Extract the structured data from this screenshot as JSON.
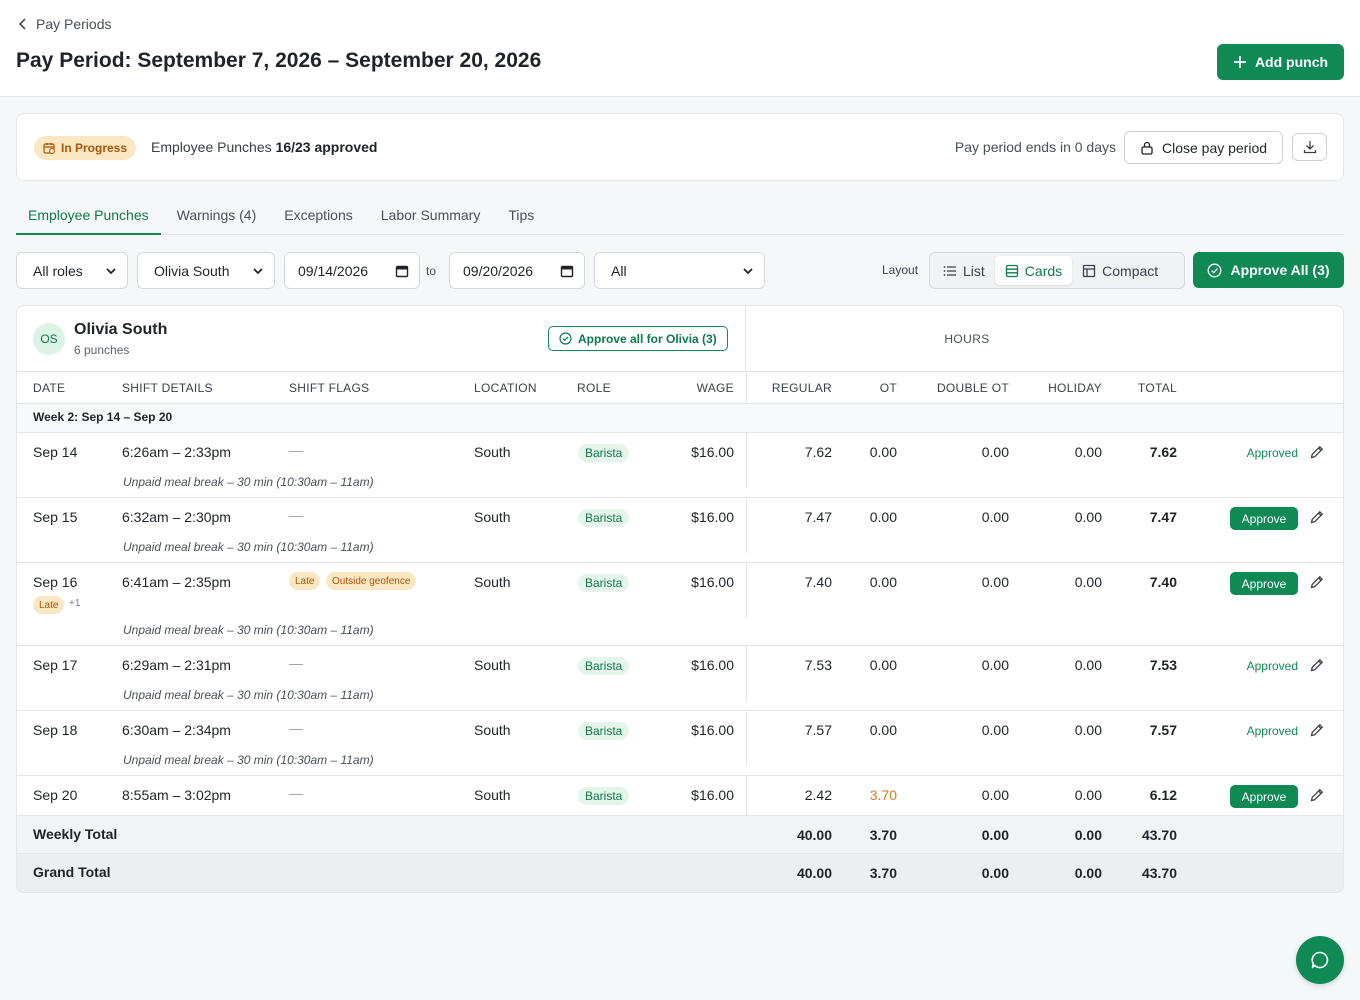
{
  "header": {
    "back_label": "Pay Periods",
    "title": "Pay Period: September 7, 2026 – September 20, 2026",
    "add_punch_label": "Add punch"
  },
  "status": {
    "badge": "In Progress",
    "punches_label": "Employee Punches",
    "punches_count": "16/23 approved",
    "ends_text": "Pay period ends in 0 days",
    "close_label": "Close pay period"
  },
  "tabs": [
    "Employee Punches",
    "Warnings (4)",
    "Exceptions",
    "Labor Summary",
    "Tips"
  ],
  "filters": {
    "role": "All roles",
    "employee": "Olivia South",
    "date_from": "09/14/2026",
    "to_label": "to",
    "date_to": "09/20/2026",
    "status": "All"
  },
  "layout": {
    "label": "Layout",
    "options": [
      "List",
      "Cards",
      "Compact"
    ],
    "active": "Cards"
  },
  "approve_all_label": "Approve All (3)",
  "employee": {
    "initials": "OS",
    "name": "Olivia South",
    "punches": "6 punches",
    "approve_label": "Approve all for Olivia (3)",
    "hours_label": "HOURS"
  },
  "columns": {
    "date": "DATE",
    "shift": "SHIFT DETAILS",
    "flags": "SHIFT FLAGS",
    "location": "LOCATION",
    "role": "ROLE",
    "wage": "WAGE",
    "regular": "REGULAR",
    "ot": "OT",
    "double_ot": "DOUBLE OT",
    "holiday": "HOLIDAY",
    "total": "TOTAL"
  },
  "week_label": "Week 2: Sep 14 – Sep 20",
  "rows": [
    {
      "date": "Sep 14",
      "shift": "6:26am – 2:33pm",
      "flags": "—",
      "location": "South",
      "role": "Barista",
      "wage": "$16.00",
      "regular": "7.62",
      "ot": "0.00",
      "double_ot": "0.00",
      "holiday": "0.00",
      "total": "7.62",
      "status": "Approved",
      "meal": "Unpaid meal break – 30 min (10:30am – 11am)"
    },
    {
      "date": "Sep 15",
      "shift": "6:32am – 2:30pm",
      "flags": "—",
      "location": "South",
      "role": "Barista",
      "wage": "$16.00",
      "regular": "7.47",
      "ot": "0.00",
      "double_ot": "0.00",
      "holiday": "0.00",
      "total": "7.47",
      "status": "Approve",
      "meal": "Unpaid meal break – 30 min (10:30am – 11am)"
    },
    {
      "date": "Sep 16",
      "shift": "6:41am – 2:35pm",
      "flag1": "Late",
      "flag2": "Outside geofence",
      "date_flag": "Late",
      "date_more": "+1",
      "location": "South",
      "role": "Barista",
      "wage": "$16.00",
      "regular": "7.40",
      "ot": "0.00",
      "double_ot": "0.00",
      "holiday": "0.00",
      "total": "7.40",
      "status": "Approve",
      "meal": "Unpaid meal break – 30 min (10:30am – 11am)"
    },
    {
      "date": "Sep 17",
      "shift": "6:29am – 2:31pm",
      "flags": "—",
      "location": "South",
      "role": "Barista",
      "wage": "$16.00",
      "regular": "7.53",
      "ot": "0.00",
      "double_ot": "0.00",
      "holiday": "0.00",
      "total": "7.53",
      "status": "Approved",
      "meal": "Unpaid meal break – 30 min (10:30am – 11am)"
    },
    {
      "date": "Sep 18",
      "shift": "6:30am – 2:34pm",
      "flags": "—",
      "location": "South",
      "role": "Barista",
      "wage": "$16.00",
      "regular": "7.57",
      "ot": "0.00",
      "double_ot": "0.00",
      "holiday": "0.00",
      "total": "7.57",
      "status": "Approved",
      "meal": "Unpaid meal break – 30 min (10:30am – 11am)"
    },
    {
      "date": "Sep 20",
      "shift": "8:55am – 3:02pm",
      "flags": "—",
      "location": "South",
      "role": "Barista",
      "wage": "$16.00",
      "regular": "2.42",
      "ot": "3.70",
      "double_ot": "0.00",
      "holiday": "0.00",
      "total": "6.12",
      "status": "Approve"
    }
  ],
  "weekly_total": {
    "label": "Weekly Total",
    "regular": "40.00",
    "ot": "3.70",
    "double_ot": "0.00",
    "holiday": "0.00",
    "total": "43.70"
  },
  "grand_total": {
    "label": "Grand Total",
    "regular": "40.00",
    "ot": "3.70",
    "double_ot": "0.00",
    "holiday": "0.00",
    "total": "43.70"
  },
  "colors": {
    "accent": "#0f8a55",
    "overtime": "#d97a1c",
    "warning_bg": "#fbe7c2"
  }
}
